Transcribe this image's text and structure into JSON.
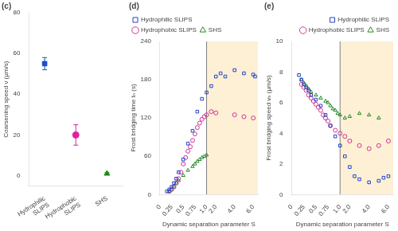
{
  "chart_data": [
    {
      "type": "errorbar",
      "title": "(c)",
      "categories": [
        "Hydrophilic\nSLIPS",
        "Hydrophobic\nSLIPS",
        "SHS"
      ],
      "values": [
        55,
        20,
        1
      ],
      "errors": [
        3,
        5,
        0.5
      ],
      "colors": [
        "#1a4fcc",
        "#e020a0",
        "#1a8c1a"
      ],
      "markers": [
        "square",
        "circle",
        "triangle"
      ],
      "ylabel": "Coarsening speed ν (μm/s)",
      "ylim": [
        -5,
        80
      ],
      "yticks": [
        0,
        20,
        40,
        60,
        80
      ],
      "grid": false
    },
    {
      "type": "scatter",
      "title": "(d)",
      "xlabel": "Dynamic separation parameter S",
      "ylabel": "Frost bridging time tₙ (s)",
      "xlim": [
        0,
        6.5
      ],
      "xticks": [
        0,
        0.25,
        0.5,
        0.75,
        {
          "value": 1.0,
          "label": "1.0"
        },
        {
          "value": 2.0,
          "label": "2.0"
        },
        {
          "value": 4.0,
          "label": "4.0"
        },
        {
          "value": 6.0,
          "label": "6.0"
        }
      ],
      "x_break": 1.0,
      "ylim": [
        0,
        240
      ],
      "yticks": [
        0,
        60,
        120,
        180,
        240
      ],
      "shade": {
        "from": 1.0,
        "to": 6.5,
        "color": "#fdf0d5"
      },
      "vline": 1.0,
      "grid": false,
      "legend": "upper left",
      "series": [
        {
          "name": "Hydrophilic SLIPS",
          "color": "#2244cc",
          "marker": "square",
          "x": [
            0.15,
            0.2,
            0.25,
            0.3,
            0.35,
            0.4,
            0.5,
            0.6,
            0.7,
            0.8,
            0.9,
            1.0,
            1.5,
            2.0,
            2.5,
            3.0,
            4.0,
            5.0,
            6.0,
            6.2
          ],
          "values": [
            5,
            8,
            12,
            18,
            25,
            35,
            55,
            80,
            100,
            130,
            150,
            160,
            170,
            185,
            190,
            185,
            195,
            190,
            188,
            185
          ]
        },
        {
          "name": "Hydrophobic SLIPS",
          "color": "#cc3399",
          "marker": "circle",
          "x": [
            0.2,
            0.25,
            0.3,
            0.35,
            0.4,
            0.45,
            0.5,
            0.55,
            0.6,
            0.65,
            0.7,
            0.75,
            0.8,
            0.85,
            0.9,
            0.95,
            1.0,
            1.5,
            2.0,
            4.0,
            5.0,
            6.0
          ],
          "values": [
            5,
            8,
            12,
            18,
            25,
            35,
            48,
            58,
            68,
            75,
            85,
            95,
            105,
            112,
            118,
            122,
            125,
            130,
            128,
            125,
            122,
            120
          ]
        },
        {
          "name": "SHS",
          "color": "#228822",
          "marker": "triangle",
          "x": [
            0.2,
            0.25,
            0.3,
            0.35,
            0.4,
            0.5,
            0.6,
            0.7,
            0.75,
            0.8,
            0.85,
            0.9,
            0.95,
            1.0
          ],
          "values": [
            5,
            8,
            12,
            18,
            22,
            30,
            38,
            44,
            48,
            52,
            55,
            58,
            60,
            62
          ]
        }
      ]
    },
    {
      "type": "scatter",
      "title": "(e)",
      "xlabel": "Dynamic separation parameter S",
      "ylabel": "Frost bridging speed vₙ (μm/s)",
      "xlim": [
        0,
        6.5
      ],
      "xticks": [
        0,
        0.25,
        0.5,
        0.75,
        {
          "value": 1.0,
          "label": "1.0"
        },
        {
          "value": 2.0,
          "label": "2.0"
        },
        {
          "value": 4.0,
          "label": "4.0"
        },
        {
          "value": 6.0,
          "label": "6.0"
        }
      ],
      "x_break": 1.0,
      "ylim": [
        0,
        10
      ],
      "yticks": [
        0,
        2,
        4,
        6,
        8,
        10
      ],
      "shade": {
        "from": 1.0,
        "to": 6.5,
        "color": "#fdf0d5"
      },
      "vline": 1.0,
      "grid": false,
      "legend": "upper right",
      "series": [
        {
          "name": "Hydrophilic SLIPS",
          "color": "#2244cc",
          "marker": "square",
          "x": [
            0.15,
            0.2,
            0.25,
            0.3,
            0.35,
            0.4,
            0.5,
            0.6,
            0.7,
            0.8,
            0.9,
            1.0,
            1.5,
            2.0,
            2.5,
            3.0,
            4.0,
            5.0,
            5.5,
            6.0
          ],
          "values": [
            7.8,
            7.5,
            7.2,
            7.0,
            6.8,
            6.5,
            6.2,
            5.8,
            5.2,
            4.5,
            3.8,
            3.2,
            2.5,
            1.8,
            1.2,
            1.0,
            0.8,
            0.9,
            1.1,
            1.2
          ]
        },
        {
          "name": "Hydrophobic SLIPS",
          "color": "#cc3399",
          "marker": "circle",
          "x": [
            0.2,
            0.25,
            0.3,
            0.35,
            0.4,
            0.45,
            0.5,
            0.55,
            0.6,
            0.65,
            0.7,
            0.75,
            0.8,
            0.9,
            1.0,
            1.5,
            2.0,
            3.0,
            4.0,
            5.0,
            6.0
          ],
          "values": [
            7.2,
            7.0,
            6.8,
            6.5,
            6.3,
            6.1,
            5.9,
            5.7,
            5.5,
            5.2,
            5.0,
            4.8,
            4.5,
            4.2,
            4.0,
            3.8,
            3.5,
            3.2,
            3.0,
            3.2,
            3.5
          ]
        },
        {
          "name": "SHS",
          "color": "#228822",
          "marker": "triangle",
          "x": [
            0.2,
            0.25,
            0.3,
            0.35,
            0.4,
            0.5,
            0.6,
            0.7,
            0.75,
            0.8,
            0.85,
            0.9,
            0.95,
            1.0,
            1.5,
            2.0,
            3.0,
            4.0,
            5.0
          ],
          "values": [
            7.5,
            7.3,
            7.1,
            6.9,
            6.7,
            6.5,
            6.3,
            6.1,
            6.0,
            5.8,
            5.6,
            5.5,
            5.3,
            5.2,
            5.0,
            5.1,
            5.3,
            5.2,
            5.0
          ]
        }
      ]
    }
  ]
}
